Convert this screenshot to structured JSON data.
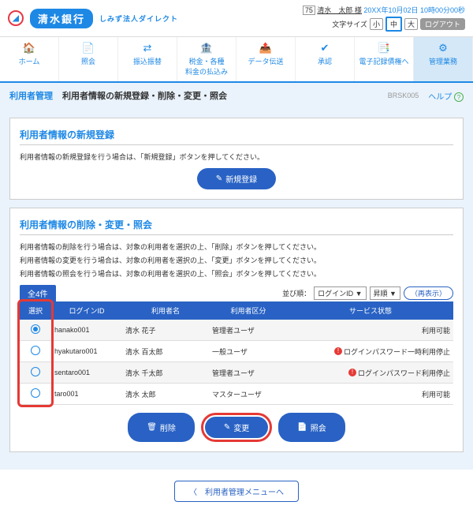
{
  "header": {
    "bank_name": "清水銀行",
    "bank_sub": "しみず法人ダイレクト",
    "user_badge": "75",
    "user_name": "清水　太郎 様",
    "datetime": "20XX年10月02日 10時00分00秒",
    "fontsize_label": "文字サイズ",
    "sizes": [
      "小",
      "中",
      "大"
    ],
    "logout": "ログアウト"
  },
  "nav": [
    {
      "icon": "🏠",
      "label": "ホーム"
    },
    {
      "icon": "📄",
      "label": "照会"
    },
    {
      "icon": "⇄",
      "label": "振込振替"
    },
    {
      "icon": "🏦",
      "label": "税金・各種\n料金の払込み"
    },
    {
      "icon": "📤",
      "label": "データ伝送"
    },
    {
      "icon": "✔",
      "label": "承認"
    },
    {
      "icon": "📑",
      "label": "電子記録債権へ"
    },
    {
      "icon": "⚙",
      "label": "管理業務"
    }
  ],
  "subhead": {
    "cat": "利用者管理",
    "title": "利用者情報の新規登録・削除・変更・照会",
    "code": "BRSK005",
    "help": "ヘルプ"
  },
  "panel1": {
    "title": "利用者情報の新規登録",
    "desc": "利用者情報の新規登録を行う場合は、「新規登録」ボタンを押してください。",
    "btn": "新規登録"
  },
  "panel2": {
    "title": "利用者情報の削除・変更・照会",
    "desc1": "利用者情報の削除を行う場合は、対象の利用者を選択の上、「削除」ボタンを押してください。",
    "desc2": "利用者情報の変更を行う場合は、対象の利用者を選択の上、「変更」ボタンを押してください。",
    "desc3": "利用者情報の照会を行う場合は、対象の利用者を選択の上、「照会」ボタンを押してください。",
    "count": "全4件",
    "sort_label": "並び順：",
    "sort1": "ログインID",
    "sort2": "昇順",
    "reload": "再表示",
    "cols": [
      "選択",
      "ログインID",
      "利用者名",
      "利用者区分",
      "サービス状態"
    ],
    "rows": [
      {
        "sel": true,
        "id": "hanako001",
        "name": "清水 花子",
        "role": "管理者ユーザ",
        "status": "利用可能",
        "warn": false
      },
      {
        "sel": false,
        "id": "hyakutaro001",
        "name": "清水 百太郎",
        "role": "一般ユーザ",
        "status": "ログインパスワード一時利用停止",
        "warn": true
      },
      {
        "sel": false,
        "id": "sentaro001",
        "name": "清水 千太郎",
        "role": "管理者ユーザ",
        "status": "ログインパスワード利用停止",
        "warn": true
      },
      {
        "sel": false,
        "id": "taro001",
        "name": "清水 太郎",
        "role": "マスターユーザ",
        "status": "利用可能",
        "warn": false
      }
    ],
    "btn_delete": "削除",
    "btn_change": "変更",
    "btn_view": "照会"
  },
  "back": "利用者管理メニューへ"
}
